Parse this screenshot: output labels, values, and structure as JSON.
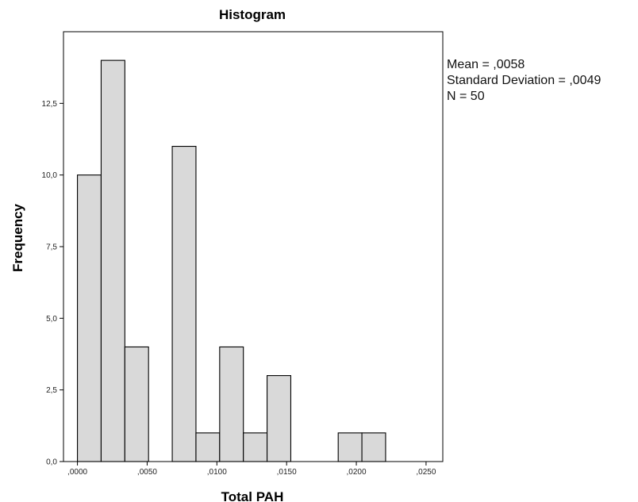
{
  "chart_data": {
    "type": "bar",
    "title": "Histogram",
    "xlabel": "Total PAH",
    "ylabel": "Frequency",
    "xlim": [
      -0.001,
      0.0262
    ],
    "ylim": [
      0,
      15
    ],
    "x_ticks": [
      0.0,
      0.005,
      0.01,
      0.015,
      0.02,
      0.025
    ],
    "x_tick_labels": [
      ",0000",
      ",0050",
      ",0100",
      ",0150",
      ",0200",
      ",0250"
    ],
    "y_ticks": [
      0,
      2.5,
      5,
      7.5,
      10,
      12.5
    ],
    "y_tick_labels": [
      "0,0",
      "2,5",
      "5,0",
      "7,5",
      "10,0",
      "12,5"
    ],
    "bin_width": 0.0017,
    "bins": [
      {
        "start": 0.0,
        "end": 0.0017,
        "count": 10
      },
      {
        "start": 0.0017,
        "end": 0.0034,
        "count": 14
      },
      {
        "start": 0.0034,
        "end": 0.0051,
        "count": 4
      },
      {
        "start": 0.0051,
        "end": 0.0068,
        "count": 0
      },
      {
        "start": 0.0068,
        "end": 0.0085,
        "count": 11
      },
      {
        "start": 0.0085,
        "end": 0.0102,
        "count": 1
      },
      {
        "start": 0.0102,
        "end": 0.0119,
        "count": 4
      },
      {
        "start": 0.0119,
        "end": 0.0136,
        "count": 1
      },
      {
        "start": 0.0136,
        "end": 0.0153,
        "count": 3
      },
      {
        "start": 0.0153,
        "end": 0.017,
        "count": 0
      },
      {
        "start": 0.017,
        "end": 0.0187,
        "count": 0
      },
      {
        "start": 0.0187,
        "end": 0.0204,
        "count": 1
      },
      {
        "start": 0.0204,
        "end": 0.0221,
        "count": 1
      }
    ],
    "grid": false,
    "stats": {
      "mean_label": "Mean = ,0058",
      "sd_label": "Standard Deviation = ,0049",
      "n_label": "N = 50"
    }
  }
}
